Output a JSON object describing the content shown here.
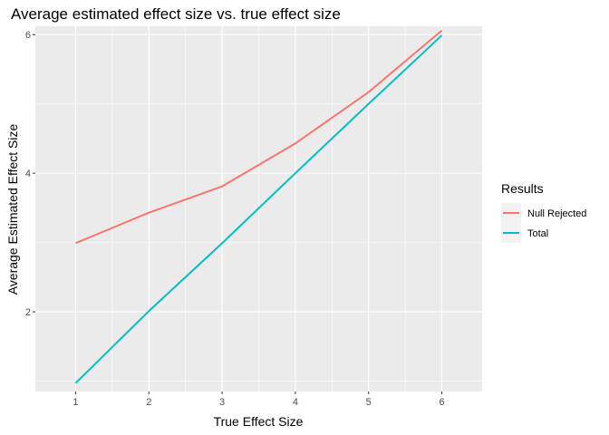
{
  "chart_data": {
    "type": "line",
    "title": "Average estimated effect size vs. true effect size",
    "xlabel": "True Effect Size",
    "ylabel": "Average Estimated Effect Size",
    "x": [
      1,
      2,
      3,
      4,
      5,
      6
    ],
    "xticks": [
      "1",
      "2",
      "3",
      "4",
      "5",
      "6"
    ],
    "yticks": [
      2,
      4,
      6
    ],
    "ytick_labels": [
      "2",
      "4",
      "6"
    ],
    "xlim": [
      0.45,
      6.55
    ],
    "ylim": [
      0.85,
      6.12
    ],
    "grid": true,
    "legend": {
      "title": "Results",
      "placement": "right"
    },
    "series": [
      {
        "name": "Null Rejected",
        "color": "#F8766D",
        "values": [
          2.99,
          3.43,
          3.81,
          4.43,
          5.17,
          6.06
        ]
      },
      {
        "name": "Total",
        "color": "#00BFC4",
        "values": [
          0.97,
          2.01,
          2.99,
          4.0,
          5.0,
          5.99
        ]
      }
    ],
    "panel_background": "#EBEBEB",
    "grid_color": "#FFFFFF"
  }
}
